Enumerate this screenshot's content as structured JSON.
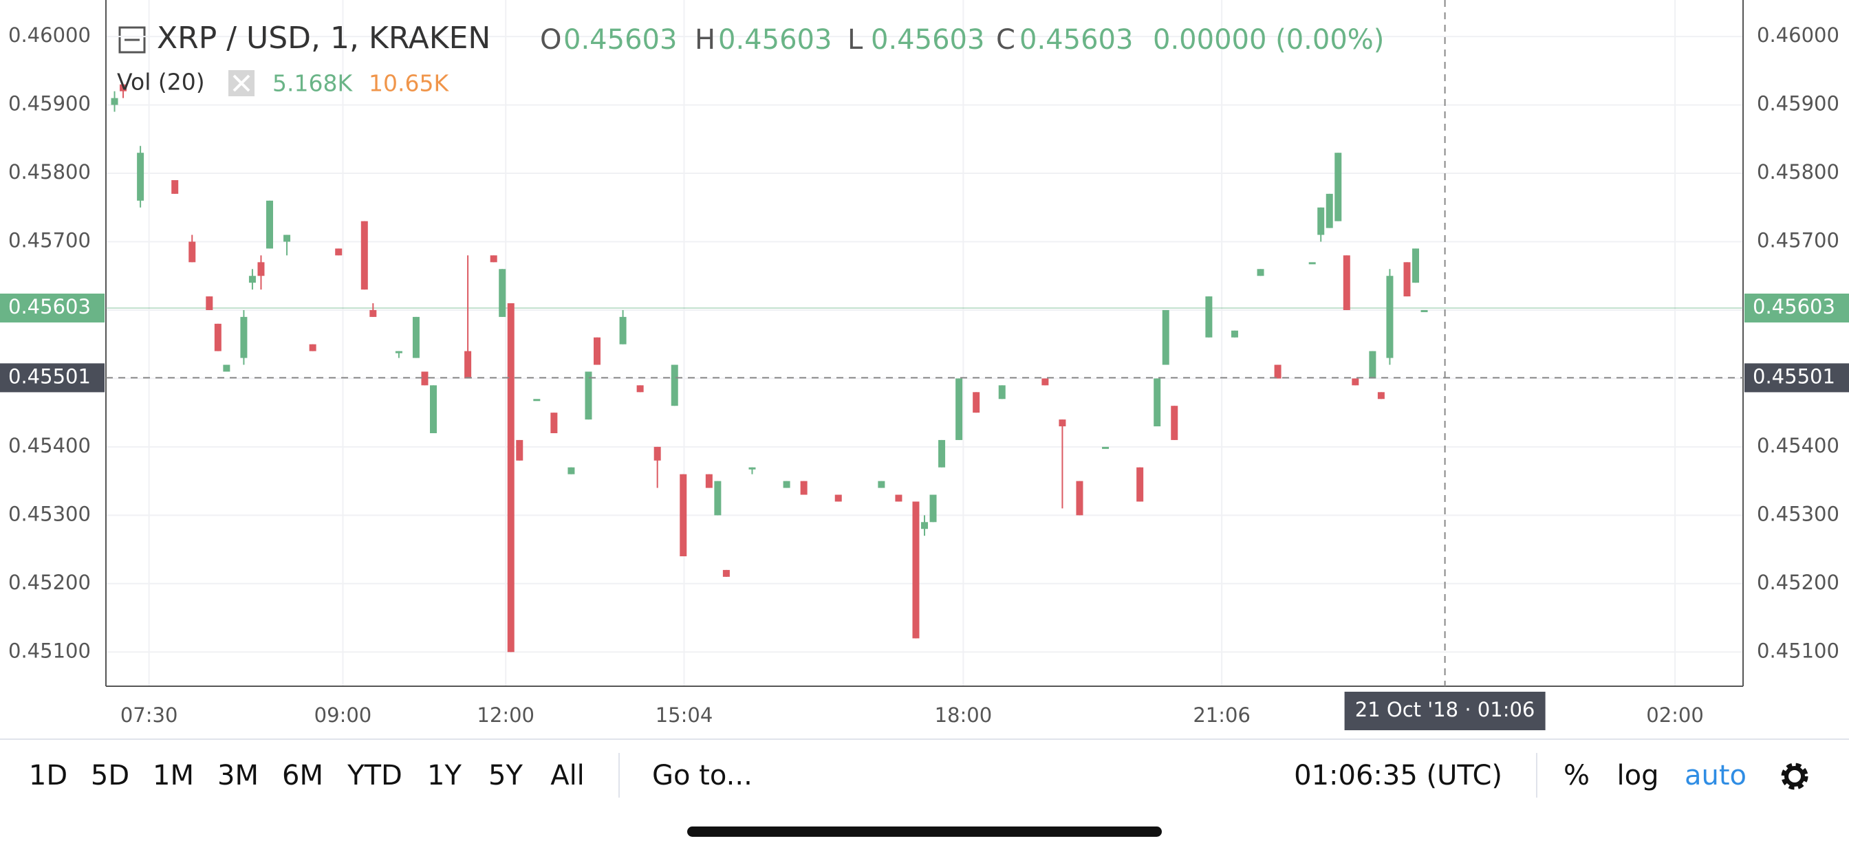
{
  "chart_data": {
    "type": "candlestick",
    "title": "XRP / USD, 1, KRAKEN",
    "legend": {
      "ohlc": [
        {
          "label": "O",
          "value": "0.45603"
        },
        {
          "label": "H",
          "value": "0.45603"
        },
        {
          "label": "L",
          "value": "0.45603"
        },
        {
          "label": "C",
          "value": "0.45603"
        }
      ],
      "change": "0.00000 (0.00%)",
      "volume": {
        "label": "Vol (20)",
        "value": "5.168K",
        "ma": "10.65K"
      }
    },
    "up_color": "#6ab487",
    "down_color": "#dc5a62",
    "log_scale": false,
    "grid": true,
    "ylim": [
      0.4505,
      0.460534
    ],
    "yticks": [
      {
        "value": 0.46,
        "label": "0.46000"
      },
      {
        "value": 0.459,
        "label": "0.45900"
      },
      {
        "value": 0.458,
        "label": "0.45800"
      },
      {
        "value": 0.457,
        "label": "0.45700"
      },
      {
        "value": 0.456,
        "label": "0.45600"
      },
      {
        "value": 0.455,
        "label": "0.45500"
      },
      {
        "value": 0.454,
        "label": "0.45400"
      },
      {
        "value": 0.453,
        "label": "0.45300"
      },
      {
        "value": 0.452,
        "label": "0.45200"
      },
      {
        "value": 0.451,
        "label": "0.45100"
      }
    ],
    "xlim": [
      0,
      190
    ],
    "xticks": [
      {
        "value": 5,
        "label": "07:30"
      },
      {
        "value": 27.5,
        "label": "09:00"
      },
      {
        "value": 46.4,
        "label": "12:00"
      },
      {
        "value": 67.1,
        "label": "15:04"
      },
      {
        "value": 99.5,
        "label": "18:00"
      },
      {
        "value": 129.5,
        "label": "21:06"
      },
      {
        "value": 182.1,
        "label": "02:00"
      }
    ],
    "last_price": {
      "value": 0.45603,
      "label": "0.45603"
    },
    "crosshair": {
      "price": {
        "value": 0.45501,
        "label": "0.45501"
      },
      "x": 155.4,
      "label": "21 Oct '18 · 01:06"
    },
    "x": [
      1,
      2,
      4,
      8,
      10,
      12,
      13,
      14,
      16,
      17,
      18,
      19,
      21,
      24,
      27,
      30,
      31,
      34,
      36,
      37,
      38,
      42,
      45,
      46,
      47,
      48,
      50,
      52,
      54,
      56,
      57,
      60,
      62,
      64,
      66,
      67,
      70,
      71,
      72,
      75,
      79,
      81,
      85,
      90,
      92,
      94,
      95,
      96,
      97,
      99,
      101,
      104,
      109,
      111,
      113,
      116,
      120,
      122,
      123,
      124,
      128,
      131,
      134,
      136,
      140,
      141,
      142,
      143,
      144,
      145,
      147,
      148,
      149,
      151,
      152,
      153
    ],
    "ohlc": [
      [
        0.459,
        0.4592,
        0.4589,
        0.4591
      ],
      [
        0.4593,
        0.4593,
        0.4591,
        0.4592
      ],
      [
        0.4576,
        0.4584,
        0.4575,
        0.4583
      ],
      [
        0.4579,
        0.4579,
        0.4577,
        0.4577
      ],
      [
        0.457,
        0.4571,
        0.4567,
        0.4567
      ],
      [
        0.4562,
        0.4562,
        0.456,
        0.456
      ],
      [
        0.4558,
        0.4558,
        0.4554,
        0.4554
      ],
      [
        0.4551,
        0.4552,
        0.4551,
        0.4552
      ],
      [
        0.4553,
        0.456,
        0.4552,
        0.4559
      ],
      [
        0.4564,
        0.4566,
        0.4563,
        0.4565
      ],
      [
        0.4567,
        0.4568,
        0.4563,
        0.4565
      ],
      [
        0.4569,
        0.4576,
        0.4569,
        0.4576
      ],
      [
        0.457,
        0.4571,
        0.4568,
        0.4571
      ],
      [
        0.4555,
        0.4555,
        0.4554,
        0.4554
      ],
      [
        0.4569,
        0.4569,
        0.4568,
        0.4568
      ],
      [
        0.4573,
        0.4573,
        0.4563,
        0.4563
      ],
      [
        0.456,
        0.4561,
        0.4559,
        0.4559
      ],
      [
        0.4554,
        0.4554,
        0.4553,
        0.4554
      ],
      [
        0.4553,
        0.4559,
        0.4553,
        0.4559
      ],
      [
        0.4551,
        0.4551,
        0.4549,
        0.4549
      ],
      [
        0.4542,
        0.4549,
        0.4542,
        0.4549
      ],
      [
        0.4554,
        0.4568,
        0.455,
        0.455
      ],
      [
        0.4568,
        0.4568,
        0.4567,
        0.4567
      ],
      [
        0.4559,
        0.4566,
        0.4559,
        0.4566
      ],
      [
        0.4561,
        0.4561,
        0.451,
        0.451
      ],
      [
        0.4541,
        0.4541,
        0.4538,
        0.4538
      ],
      [
        0.4547,
        0.4547,
        0.4547,
        0.4547
      ],
      [
        0.4545,
        0.4545,
        0.4542,
        0.4542
      ],
      [
        0.4536,
        0.4537,
        0.4536,
        0.4537
      ],
      [
        0.4544,
        0.4551,
        0.4544,
        0.4551
      ],
      [
        0.4556,
        0.4556,
        0.4552,
        0.4552
      ],
      [
        0.4555,
        0.456,
        0.4555,
        0.4559
      ],
      [
        0.4549,
        0.4549,
        0.4548,
        0.4548
      ],
      [
        0.454,
        0.454,
        0.4534,
        0.4538
      ],
      [
        0.4546,
        0.4552,
        0.4546,
        0.4552
      ],
      [
        0.4536,
        0.4536,
        0.4524,
        0.4524
      ],
      [
        0.4536,
        0.4536,
        0.4534,
        0.4534
      ],
      [
        0.453,
        0.4535,
        0.453,
        0.4535
      ],
      [
        0.4522,
        0.4522,
        0.4521,
        0.4521
      ],
      [
        0.4537,
        0.4537,
        0.4536,
        0.4537
      ],
      [
        0.4534,
        0.4535,
        0.4534,
        0.4535
      ],
      [
        0.4535,
        0.4535,
        0.4533,
        0.4533
      ],
      [
        0.4533,
        0.4533,
        0.4532,
        0.4532
      ],
      [
        0.4534,
        0.4535,
        0.4534,
        0.4535
      ],
      [
        0.4533,
        0.4533,
        0.4532,
        0.4532
      ],
      [
        0.4532,
        0.4532,
        0.4512,
        0.4512
      ],
      [
        0.4528,
        0.453,
        0.4527,
        0.4529
      ],
      [
        0.4529,
        0.4533,
        0.4529,
        0.4533
      ],
      [
        0.4537,
        0.4541,
        0.4537,
        0.4541
      ],
      [
        0.4541,
        0.455,
        0.4541,
        0.455
      ],
      [
        0.4548,
        0.4548,
        0.4545,
        0.4545
      ],
      [
        0.4547,
        0.4549,
        0.4547,
        0.4549
      ],
      [
        0.455,
        0.455,
        0.4549,
        0.4549
      ],
      [
        0.4544,
        0.4544,
        0.4531,
        0.4543
      ],
      [
        0.4535,
        0.4535,
        0.453,
        0.453
      ],
      [
        0.454,
        0.454,
        0.454,
        0.454
      ],
      [
        0.4537,
        0.4537,
        0.4532,
        0.4532
      ],
      [
        0.4543,
        0.455,
        0.4543,
        0.455
      ],
      [
        0.4552,
        0.456,
        0.4552,
        0.456
      ],
      [
        0.4546,
        0.4546,
        0.4541,
        0.4541
      ],
      [
        0.4556,
        0.4562,
        0.4556,
        0.4562
      ],
      [
        0.4556,
        0.4557,
        0.4556,
        0.4557
      ],
      [
        0.4565,
        0.4566,
        0.4565,
        0.4566
      ],
      [
        0.4552,
        0.4552,
        0.455,
        0.455
      ],
      [
        0.4567,
        0.4567,
        0.4567,
        0.4567
      ],
      [
        0.4571,
        0.4575,
        0.457,
        0.4575
      ],
      [
        0.4572,
        0.4577,
        0.4572,
        0.4577
      ],
      [
        0.4573,
        0.4583,
        0.4573,
        0.4583
      ],
      [
        0.4568,
        0.4568,
        0.456,
        0.456
      ],
      [
        0.455,
        0.455,
        0.4549,
        0.4549
      ],
      [
        0.455,
        0.4554,
        0.455,
        0.4554
      ],
      [
        0.4548,
        0.4548,
        0.4547,
        0.4547
      ],
      [
        0.4553,
        0.4566,
        0.4552,
        0.4565
      ],
      [
        0.4567,
        0.4567,
        0.4562,
        0.4562
      ],
      [
        0.4564,
        0.4569,
        0.4564,
        0.4569
      ],
      [
        0.456,
        0.456,
        0.456,
        0.456
      ]
    ]
  },
  "toolbar": {
    "ranges": [
      "1D",
      "5D",
      "1M",
      "3M",
      "6M",
      "YTD",
      "1Y",
      "5Y",
      "All"
    ],
    "goto": "Go to...",
    "clock": "01:06:35 (UTC)",
    "options": [
      "%",
      "log",
      "auto"
    ]
  }
}
